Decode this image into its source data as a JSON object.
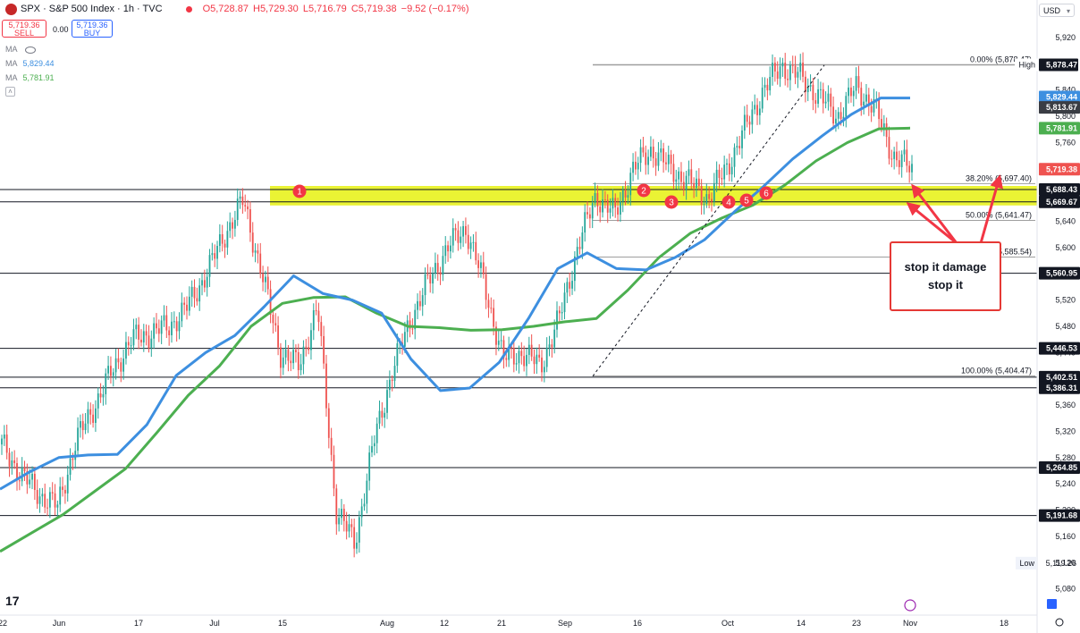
{
  "header": {
    "symbol": "SPX · S&P 500 Index · 1h · TVC",
    "ohlc": {
      "o": "O5,728.87",
      "h": "H5,729.30",
      "l": "L5,716.79",
      "c": "C5,719.38",
      "chg": "−9.52 (−0.17%)"
    },
    "sell_price": "5,719.36",
    "sell_label": "SELL",
    "spread": "0.00",
    "buy_price": "5,719.36",
    "buy_label": "BUY",
    "ma_label": "MA",
    "ma_fast_value": "5,829.44",
    "ma_slow_value": "5,781.91",
    "currency": "USD"
  },
  "note": {
    "text": "stop it damage stop it"
  },
  "colors": {
    "up": "#26a69a",
    "down": "#ef5350",
    "ma_fast": "#3d8fe0",
    "ma_slow": "#4caf50",
    "zone": "#e8f21e",
    "marker": "#f23645",
    "accent": "#2962ff"
  },
  "chart_data": {
    "type": "line",
    "title": "SPX · S&P 500 Index · 1h · TVC",
    "ylim": [
      5040,
      5950
    ],
    "y_ticks": [
      5080,
      5120,
      5160,
      5200,
      5240,
      5280,
      5320,
      5360,
      5400,
      5440,
      5480,
      5520,
      5560,
      5600,
      5640,
      5680,
      5720,
      5760,
      5800,
      5840,
      5880,
      5920
    ],
    "x_ticks": [
      "22",
      "Jun",
      "17",
      "Jul",
      "15",
      "Aug",
      "12",
      "21",
      "Sep",
      "16",
      "Oct",
      "14",
      "23",
      "Nov",
      "18"
    ],
    "series": [
      {
        "name": "MA",
        "values": [
          5232,
          5258,
          5280,
          5284,
          5285,
          5330,
          5405,
          5440,
          5466,
          5510,
          5557,
          5530,
          5520,
          5500,
          5430,
          5382,
          5386,
          5425,
          5492,
          5568,
          5592,
          5568,
          5566,
          5585,
          5612,
          5654,
          5693,
          5735,
          5770,
          5803,
          5828,
          5828
        ]
      },
      {
        "name": "MA",
        "values": [
          5137,
          5165,
          5193,
          5228,
          5263,
          5318,
          5375,
          5420,
          5480,
          5515,
          5524,
          5525,
          5500,
          5480,
          5478,
          5474,
          5475,
          5480,
          5487,
          5492,
          5535,
          5585,
          5622,
          5645,
          5665,
          5695,
          5732,
          5760,
          5781,
          5782
        ]
      },
      {
        "name": "SPX",
        "values": [
          5300,
          5255,
          5225,
          5205,
          5305,
          5360,
          5415,
          5460,
          5470,
          5480,
          5510,
          5560,
          5620,
          5672,
          5560,
          5440,
          5420,
          5510,
          5200,
          5150,
          5300,
          5410,
          5490,
          5550,
          5600,
          5630,
          5540,
          5430,
          5440,
          5420,
          5490,
          5600,
          5680,
          5650,
          5720,
          5750,
          5720,
          5700,
          5675,
          5720,
          5780,
          5840,
          5878,
          5860,
          5830,
          5800,
          5845,
          5813,
          5740,
          5719
        ]
      }
    ],
    "horizontal_levels": [
      {
        "label": "5,878.47",
        "value": 5878.47,
        "note": "High"
      },
      {
        "label": "5,688.43",
        "value": 5688.43
      },
      {
        "label": "5,669.67",
        "value": 5669.67
      },
      {
        "label": "5,560.95",
        "value": 5560.95
      },
      {
        "label": "5,446.53",
        "value": 5446.53
      },
      {
        "label": "5,402.51",
        "value": 5402.51
      },
      {
        "label": "5,386.31",
        "value": 5386.31
      },
      {
        "label": "5,264.85",
        "value": 5264.85
      },
      {
        "label": "5,191.68",
        "value": 5191.68
      }
    ],
    "fib_levels": [
      {
        "label": "0.00% (5,878.47)",
        "value": 5878.47
      },
      {
        "label": "38.20% (5,697.40)",
        "value": 5697.4
      },
      {
        "label": "50.00% (5,641.47)",
        "value": 5641.47
      },
      {
        "label": "(5,585.54)",
        "value": 5585.54
      },
      {
        "label": "100.00% (5,404.47)",
        "value": 5404.47
      }
    ],
    "price_tags": [
      {
        "label": "5,829.44",
        "value": 5829.44,
        "kind": "ma_fast"
      },
      {
        "label": "5,813.67",
        "value": 5813.67,
        "kind": "dark"
      },
      {
        "label": "5,781.91",
        "value": 5781.91,
        "kind": "ma_slow"
      },
      {
        "label": "5,719.38",
        "value": 5719.38,
        "kind": "last"
      }
    ],
    "range_labels": {
      "high": "High",
      "low": "Low",
      "low_value": "5,119.26",
      "low_price": 5119.26
    },
    "zone": {
      "from": 5669.67,
      "to": 5688.43
    },
    "markers": [
      "1",
      "2",
      "3",
      "4",
      "5",
      "6"
    ]
  }
}
